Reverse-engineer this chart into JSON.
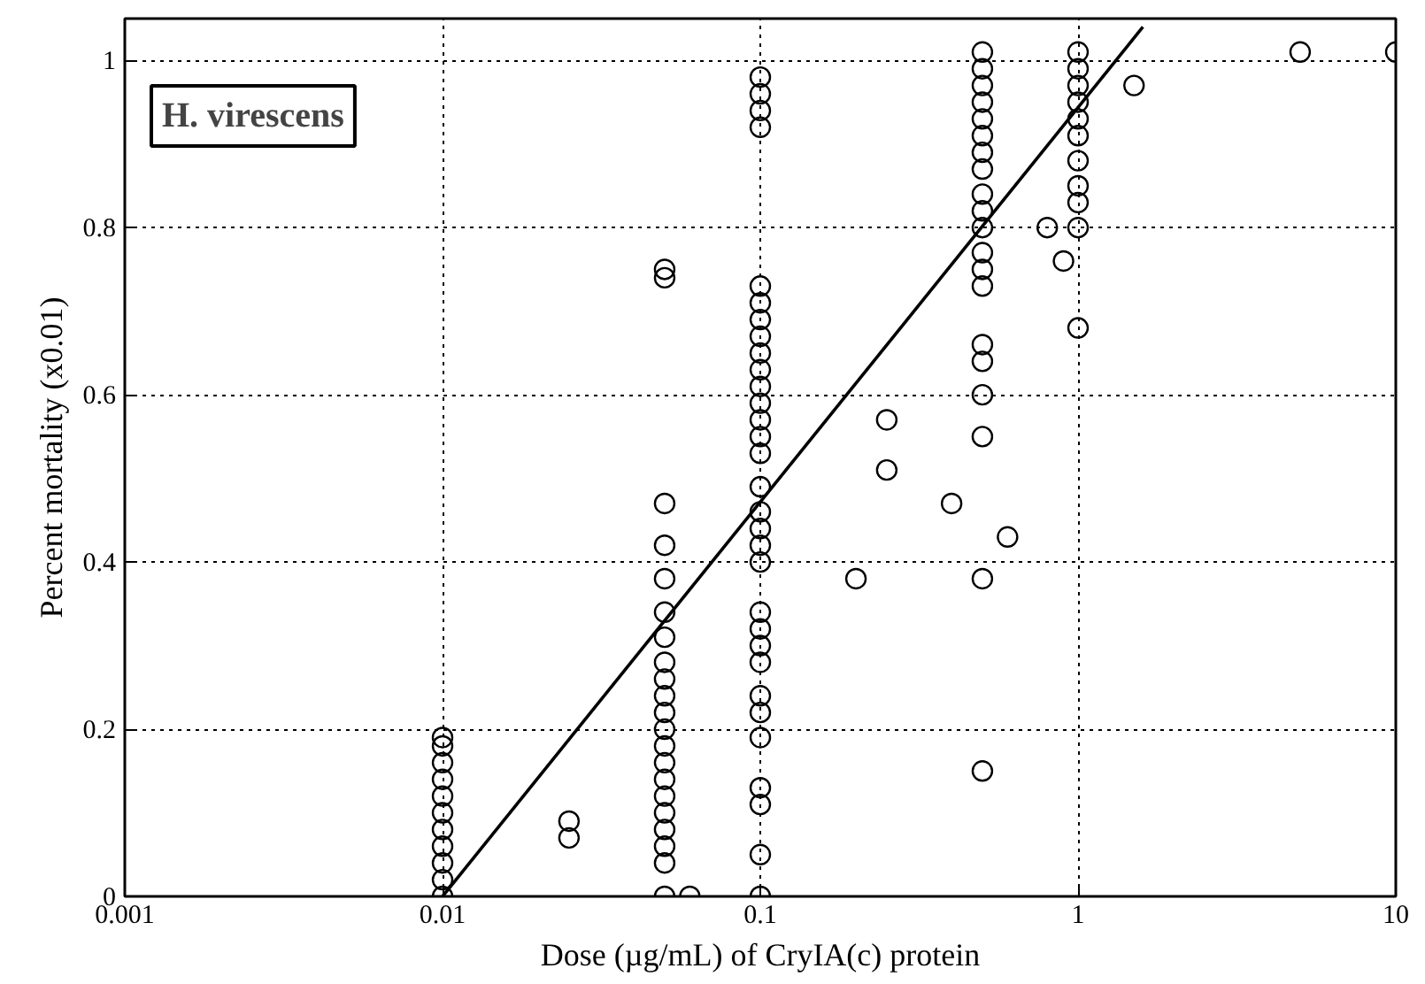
{
  "chart_data": {
    "type": "scatter",
    "xlabel": "Dose (µg/mL) of CryIA(c) protein",
    "ylabel": "Percent mortality (x0.01)",
    "annotations": [
      "H. virescens"
    ],
    "log": "x",
    "grid": true,
    "xlim": [
      0.001,
      10
    ],
    "ylim": [
      0,
      1.05
    ],
    "xticks": [
      0.001,
      0.01,
      0.1,
      1,
      10
    ],
    "yticks": [
      0,
      0.2,
      0.4,
      0.6,
      0.8,
      1
    ],
    "series": [
      {
        "marker": "circle",
        "color": "#000000",
        "x": [
          0.01,
          0.01,
          0.01,
          0.01,
          0.01,
          0.01,
          0.01,
          0.01,
          0.01,
          0.01,
          0.01,
          0.025,
          0.025,
          0.05,
          0.05,
          0.05,
          0.05,
          0.05,
          0.05,
          0.05,
          0.05,
          0.05,
          0.05,
          0.05,
          0.05,
          0.05,
          0.05,
          0.05,
          0.05,
          0.05,
          0.05,
          0.05,
          0.05,
          0.05,
          0.06,
          0.1,
          0.1,
          0.1,
          0.1,
          0.1,
          0.1,
          0.1,
          0.1,
          0.1,
          0.1,
          0.1,
          0.1,
          0.1,
          0.1,
          0.1,
          0.1,
          0.1,
          0.1,
          0.1,
          0.1,
          0.1,
          0.1,
          0.1,
          0.1,
          0.1,
          0.1,
          0.1,
          0.1,
          0.1,
          0.1,
          0.1,
          0.2,
          0.25,
          0.25,
          0.4,
          0.6,
          0.5,
          0.5,
          0.5,
          0.5,
          0.5,
          0.5,
          0.5,
          0.5,
          0.5,
          0.5,
          0.5,
          0.5,
          0.5,
          0.5,
          0.5,
          0.5,
          0.5,
          0.5,
          0.5,
          0.5,
          1,
          1,
          1,
          1,
          1,
          1,
          1,
          1,
          1,
          1,
          1,
          0.8,
          0.9,
          1.5,
          5,
          10
        ],
        "values": [
          0,
          0.02,
          0.04,
          0.06,
          0.08,
          0.1,
          0.12,
          0.14,
          0.16,
          0.18,
          0.19,
          0.07,
          0.09,
          0.75,
          0.74,
          0.47,
          0.42,
          0.38,
          0.34,
          0.31,
          0.28,
          0.26,
          0.24,
          0.22,
          0.2,
          0.18,
          0.16,
          0.14,
          0.12,
          0.1,
          0.08,
          0.06,
          0.04,
          0,
          0,
          0.98,
          0.96,
          0.94,
          0.92,
          0.73,
          0.71,
          0.69,
          0.67,
          0.65,
          0.63,
          0.61,
          0.59,
          0.57,
          0.55,
          0.53,
          0.49,
          0.46,
          0.44,
          0.42,
          0.4,
          0.34,
          0.32,
          0.3,
          0.28,
          0.24,
          0.22,
          0.19,
          0.13,
          0.11,
          0.05,
          0,
          0.38,
          0.57,
          0.51,
          0.47,
          0.43,
          1.01,
          0.99,
          0.97,
          0.95,
          0.93,
          0.91,
          0.89,
          0.87,
          0.84,
          0.82,
          0.8,
          0.77,
          0.75,
          0.73,
          0.66,
          0.64,
          0.6,
          0.55,
          0.38,
          0.15,
          1.01,
          0.99,
          0.97,
          0.95,
          0.93,
          0.91,
          0.88,
          0.85,
          0.83,
          0.8,
          0.68,
          0.8,
          0.76,
          0.97,
          1.01,
          1.01
        ]
      },
      {
        "type": "line",
        "marker": "none",
        "color": "#000000",
        "x": [
          0.01,
          1.6
        ],
        "values": [
          0,
          1.04
        ]
      }
    ]
  }
}
